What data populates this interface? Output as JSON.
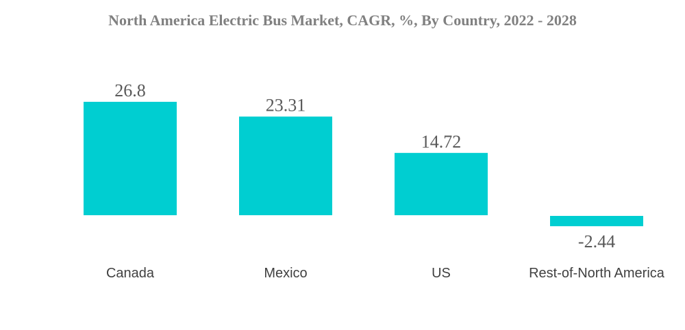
{
  "chart_data": {
    "type": "bar",
    "title": "North America Electric Bus Market, CAGR, %, By Country, 2022 - 2028",
    "categories": [
      "Canada",
      "Mexico",
      "US",
      "Rest-of-North America"
    ],
    "values": [
      26.8,
      23.31,
      14.72,
      -2.44
    ],
    "value_labels": [
      "26.8",
      "23.31",
      "14.72",
      "-2.44"
    ],
    "xlabel": "",
    "ylabel": "",
    "ylim": [
      -2.44,
      26.8
    ],
    "grid": false,
    "legend": "none",
    "colors": {
      "bar": "#00CED1",
      "title": "#808080",
      "value_label": "#595959",
      "category_label": "#404040"
    }
  }
}
